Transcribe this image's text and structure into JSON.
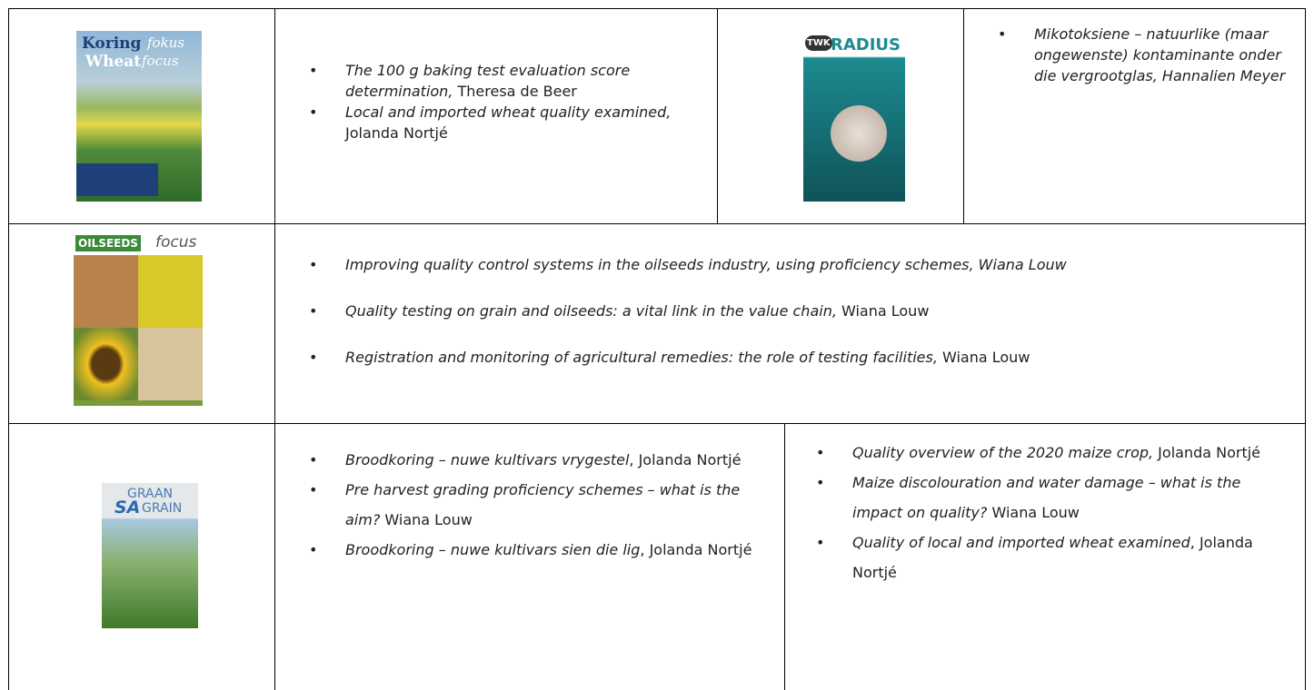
{
  "rows": [
    {
      "cells": [
        {
          "cover": {
            "texts": [
              "Koring",
              "fokus",
              "Wheat",
              "focus"
            ]
          }
        },
        {
          "items": [
            {
              "italic": "The 100 g baking test evaluation score determination,",
              "regular": " Theresa de Beer"
            },
            {
              "italic": "Local and imported wheat quality examined,",
              "regular": " Jolanda Nortjé"
            }
          ]
        },
        {
          "cover": {
            "texts": [
              "TWK",
              "RADIUS"
            ]
          }
        },
        {
          "items": [
            {
              "italic": "Mikotoksiene – natuurlike (maar ongewenste) kontaminante onder die vergrootglas, Hannalien Meyer"
            }
          ]
        }
      ]
    },
    {
      "cells": [
        {
          "cover": {
            "texts": [
              "OILSEEDS",
              "focus"
            ]
          }
        },
        {
          "items": [
            {
              "italic": "Improving quality control systems in the oilseeds industry, using proficiency schemes, Wiana Louw"
            },
            {
              "italic": "Quality testing on grain and oilseeds: a vital link in the value chain,",
              "regular": " Wiana Louw"
            },
            {
              "italic": "Registration and monitoring of agricultural remedies: the role of testing facilities,",
              "regular": " Wiana Louw"
            }
          ]
        }
      ]
    },
    {
      "cells": [
        {
          "cover": {
            "texts": [
              "GRAAN",
              "SA",
              "GRAIN"
            ]
          }
        },
        {
          "items": [
            {
              "italic": "Broodkoring – nuwe kultivars vrygestel",
              "regular": ", Jolanda Nortjé"
            },
            {
              "italic": "Pre harvest grading proficiency schemes – what is the aim?",
              "regular": " Wiana Louw"
            },
            {
              "italic": "Broodkoring – nuwe kultivars sien die lig",
              "regular": ", Jolanda Nortjé"
            }
          ]
        },
        {
          "items": [
            {
              "italic": "Quality overview of the 2020 maize crop,",
              "regular": " Jolanda Nortjé"
            },
            {
              "italic": "Maize discolouration and water damage – what is the impact on quality?",
              "regular": " Wiana Louw"
            },
            {
              "italic": "Quality of local and imported wheat examined",
              "regular": ", Jolanda Nortjé"
            }
          ]
        }
      ]
    }
  ]
}
